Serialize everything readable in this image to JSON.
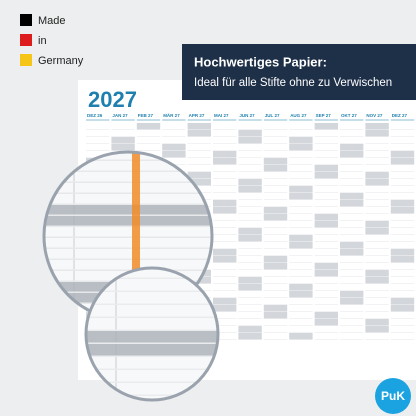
{
  "badge": {
    "lines": [
      "Made",
      "in",
      "Germany"
    ]
  },
  "banner": {
    "title": "Hochwertiges Papier:",
    "subtitle": "Ideal für alle Stifte ohne zu Verwischen"
  },
  "calendar": {
    "year": "2027",
    "months": [
      "DEZ 26",
      "JAN 27",
      "FEB 27",
      "MÄR 27",
      "APR 27",
      "MAI 27",
      "JUN 27",
      "JUL 27",
      "AUG 27",
      "SEP 27",
      "OKT 27",
      "NOV 27",
      "DEZ 27"
    ]
  },
  "logo": {
    "text": "PuK"
  }
}
